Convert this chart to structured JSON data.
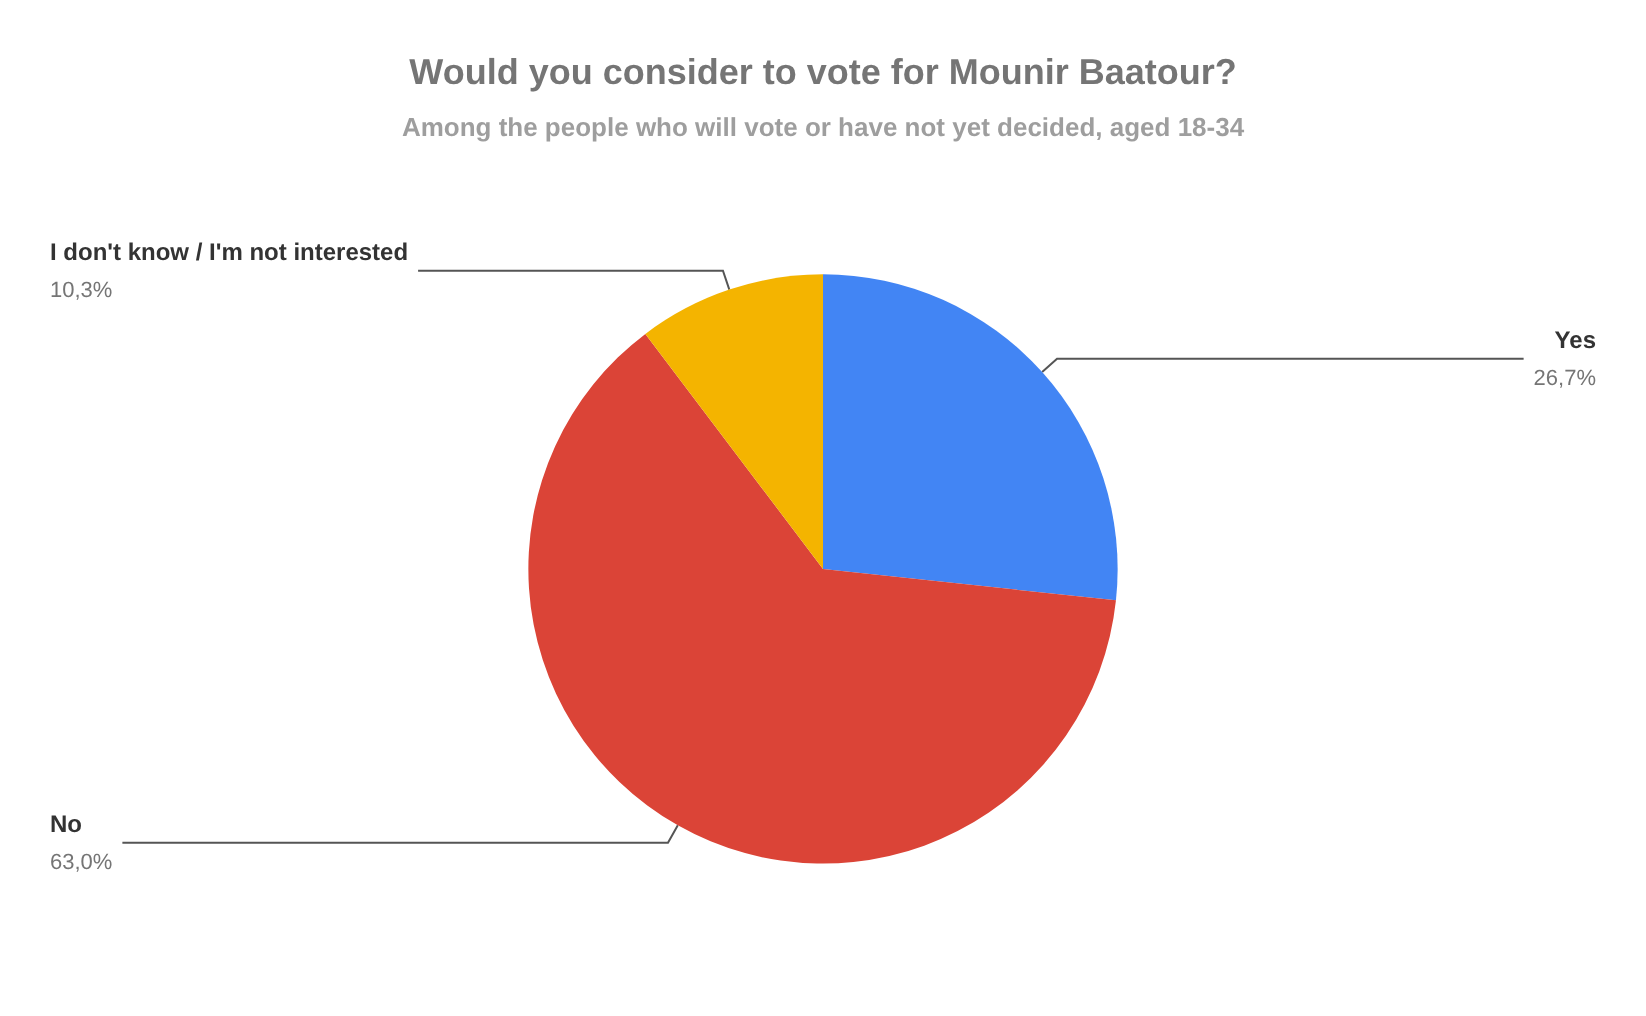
{
  "chart_data": {
    "type": "pie",
    "title": "Would you consider to vote for Mounir Baatour?",
    "subtitle": "Among the people who will vote or have not yet decided, aged 18-34",
    "categories": [
      "Yes",
      "No",
      "I don't know / I'm not interested"
    ],
    "values": [
      26.7,
      63.0,
      10.3
    ],
    "colors": [
      "#4285f4",
      "#db4437",
      "#f4b400"
    ],
    "value_labels": [
      "26,7%",
      "63,0%",
      "10,3%"
    ]
  }
}
